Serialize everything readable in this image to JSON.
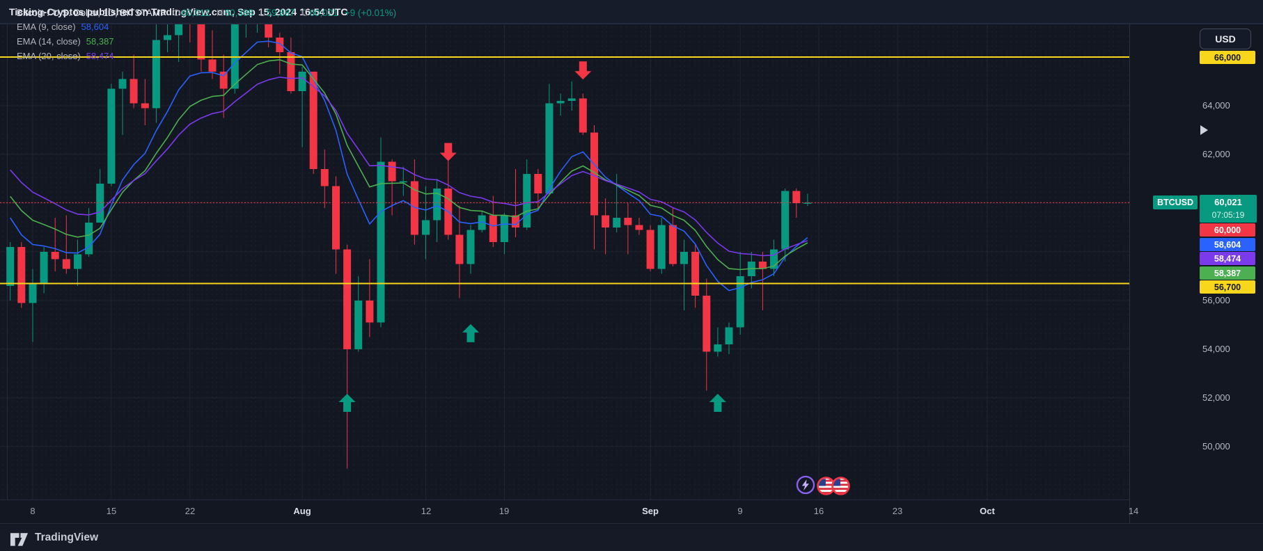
{
  "publisher_bar": {
    "text": "Ticking-Cryptos published on TradingView.com, Sep 15, 2024 16:54 UTC"
  },
  "legend": {
    "symbol_title": "Bitcoin / U.S. Dollar, 1D, BITSTAMP",
    "ohlc": [
      {
        "label": "O",
        "value": "60,012"
      },
      {
        "label": "H",
        "value": "60,388"
      },
      {
        "label": "L",
        "value": "59,887"
      },
      {
        "label": "C",
        "value": "60,021"
      }
    ],
    "change": "+9 (+0.01%)",
    "indicators": [
      {
        "label": "EMA (9, close)",
        "value": "58,604",
        "color": "#2962ff"
      },
      {
        "label": "EMA (14, close)",
        "value": "58,387",
        "color": "#4caf50"
      },
      {
        "label": "EMA (20, close)",
        "value": "58,474",
        "color": "#7c3aed"
      }
    ]
  },
  "price_axis": {
    "currency_label": "USD",
    "plain_ticks": [
      {
        "label": "64,000",
        "price": 64000
      },
      {
        "label": "62,000",
        "price": 62000
      },
      {
        "label": "56,000",
        "price": 56000
      },
      {
        "label": "54,000",
        "price": 54000
      },
      {
        "label": "52,000",
        "price": 52000
      },
      {
        "label": "50,000",
        "price": 50000
      }
    ],
    "line_badges": [
      {
        "label": "66,000",
        "price": 66000,
        "bg": "#f7d61b",
        "fg": "#131722"
      }
    ],
    "last_price": {
      "tag": "BTCUSD",
      "value": "60,021",
      "value_num": 60021,
      "countdown": "07:05:19",
      "bg": "#089981"
    },
    "stacked_badges": [
      {
        "label": "60,000",
        "price": 60000,
        "bg": "#f23645",
        "fg": "#ffffff"
      },
      {
        "label": "58,604",
        "price": 58604,
        "bg": "#2962ff",
        "fg": "#ffffff"
      },
      {
        "label": "58,474",
        "price": 58474,
        "bg": "#7c3aed",
        "fg": "#ffffff"
      },
      {
        "label": "58,387",
        "price": 58387,
        "bg": "#4caf50",
        "fg": "#ffffff"
      },
      {
        "label": "56,700",
        "price": 56700,
        "bg": "#f7d61b",
        "fg": "#131722"
      }
    ]
  },
  "footer": {
    "brand": "TradingView"
  },
  "chart_data": {
    "type": "candlestick",
    "title": "Bitcoin / U.S. Dollar",
    "interval": "1D",
    "exchange": "BITSTAMP",
    "colors": {
      "up": "#089981",
      "down": "#f23645",
      "grid": "rgba(250,250,255,0.055)"
    },
    "price_range_visible": [
      47800,
      67343
    ],
    "grid_prices": [
      66000,
      64000,
      62000,
      60000,
      58000,
      56000,
      54000,
      52000,
      50000
    ],
    "time_gridlines": [
      {
        "label": "8",
        "index": 2
      },
      {
        "label": "15",
        "index": 9
      },
      {
        "label": "22",
        "index": 16
      },
      {
        "label": "Aug",
        "index": 26,
        "major": true
      },
      {
        "label": "12",
        "index": 37
      },
      {
        "label": "19",
        "index": 44
      },
      {
        "label": "Sep",
        "index": 57,
        "major": true
      },
      {
        "label": "9",
        "index": 65
      },
      {
        "label": "16",
        "index": 72
      },
      {
        "label": "23",
        "index": 79
      },
      {
        "label": "Oct",
        "index": 87,
        "major": true
      },
      {
        "label": "14",
        "index": 100
      }
    ],
    "columns": [
      "date",
      "open",
      "high",
      "low",
      "close"
    ],
    "candles": [
      [
        "Jul 6",
        56600,
        58400,
        56000,
        58200
      ],
      [
        "Jul 7",
        58200,
        58400,
        55700,
        55900
      ],
      [
        "Jul 8",
        55900,
        57300,
        54300,
        56700
      ],
      [
        "Jul 9",
        56700,
        58200,
        56300,
        58000
      ],
      [
        "Jul 10",
        58000,
        59400,
        57200,
        57700
      ],
      [
        "Jul 11",
        57700,
        59500,
        57100,
        57300
      ],
      [
        "Jul 12",
        57300,
        58500,
        56600,
        57900
      ],
      [
        "Jul 13",
        57900,
        59800,
        57800,
        59200
      ],
      [
        "Jul 14",
        59200,
        61400,
        59200,
        60800
      ],
      [
        "Jul 15",
        60800,
        64900,
        60700,
        64700
      ],
      [
        "Jul 16",
        64700,
        65400,
        62800,
        65100
      ],
      [
        "Jul 17",
        65100,
        66100,
        63900,
        64100
      ],
      [
        "Jul 18",
        64100,
        65100,
        63200,
        63900
      ],
      [
        "Jul 19",
        63900,
        67400,
        63300,
        66700
      ],
      [
        "Jul 20",
        66700,
        67600,
        66200,
        66900
      ],
      [
        "Jul 21",
        66900,
        68400,
        65800,
        68200
      ],
      [
        "Jul 22",
        68200,
        68500,
        66600,
        67500
      ],
      [
        "Jul 23",
        67500,
        67800,
        65400,
        65900
      ],
      [
        "Jul 24",
        65900,
        67100,
        65100,
        65400
      ],
      [
        "Jul 25",
        65400,
        66100,
        63500,
        64700
      ],
      [
        "Jul 26",
        64700,
        68200,
        64500,
        67900
      ],
      [
        "Jul 27",
        67900,
        69400,
        66800,
        67900
      ],
      [
        "Jul 28",
        67900,
        68800,
        67000,
        68300
      ],
      [
        "Jul 29",
        68300,
        69900,
        66400,
        66800
      ],
      [
        "Jul 30",
        66800,
        67000,
        65300,
        66200
      ],
      [
        "Jul 31",
        66200,
        66800,
        64500,
        64600
      ],
      [
        "Aug 1",
        64600,
        65600,
        62300,
        65400
      ],
      [
        "Aug 2",
        65400,
        65400,
        61200,
        61400
      ],
      [
        "Aug 3",
        61400,
        62200,
        59800,
        60700
      ],
      [
        "Aug 4",
        60700,
        61100,
        57100,
        58100
      ],
      [
        "Aug 5",
        58100,
        58300,
        49100,
        54000
      ],
      [
        "Aug 6",
        54000,
        57000,
        53900,
        56000
      ],
      [
        "Aug 7",
        56000,
        57700,
        54500,
        55100
      ],
      [
        "Aug 8",
        55100,
        62700,
        54900,
        61700
      ],
      [
        "Aug 9",
        61700,
        61800,
        59500,
        60900
      ],
      [
        "Aug 10",
        60900,
        61500,
        60300,
        60900
      ],
      [
        "Aug 11",
        60900,
        61800,
        58300,
        58700
      ],
      [
        "Aug 12",
        58700,
        60700,
        57700,
        59300
      ],
      [
        "Aug 13",
        59300,
        61000,
        58400,
        60600
      ],
      [
        "Aug 14",
        60600,
        61800,
        58500,
        58700
      ],
      [
        "Aug 15",
        58700,
        59900,
        56100,
        57500
      ],
      [
        "Aug 16",
        57500,
        59100,
        57100,
        58900
      ],
      [
        "Aug 17",
        58900,
        59700,
        58800,
        59500
      ],
      [
        "Aug 18",
        59500,
        60300,
        58200,
        58400
      ],
      [
        "Aug 19",
        58400,
        59600,
        57900,
        59500
      ],
      [
        "Aug 20",
        59500,
        61400,
        58600,
        59000
      ],
      [
        "Aug 21",
        59000,
        61800,
        58900,
        61200
      ],
      [
        "Aug 22",
        61200,
        61400,
        59800,
        60400
      ],
      [
        "Aug 23",
        60400,
        64900,
        60300,
        64100
      ],
      [
        "Aug 24",
        64100,
        64500,
        63600,
        64200
      ],
      [
        "Aug 25",
        64200,
        65000,
        63800,
        64300
      ],
      [
        "Aug 26",
        64300,
        64500,
        62800,
        62900
      ],
      [
        "Aug 27",
        62900,
        63200,
        58100,
        59500
      ],
      [
        "Aug 28",
        59500,
        60200,
        57900,
        59000
      ],
      [
        "Aug 29",
        59000,
        61200,
        58800,
        59400
      ],
      [
        "Aug 30",
        59400,
        60000,
        57900,
        59100
      ],
      [
        "Aug 31",
        59100,
        59400,
        58700,
        58900
      ],
      [
        "Sep 1",
        58900,
        59100,
        57200,
        57300
      ],
      [
        "Sep 2",
        57300,
        59400,
        57100,
        59100
      ],
      [
        "Sep 3",
        59100,
        59800,
        57400,
        57500
      ],
      [
        "Sep 4",
        57500,
        58500,
        55600,
        58000
      ],
      [
        "Sep 5",
        58000,
        58300,
        55700,
        56200
      ],
      [
        "Sep 6",
        56200,
        56900,
        52300,
        53900
      ],
      [
        "Sep 7",
        53900,
        54900,
        53700,
        54200
      ],
      [
        "Sep 8",
        54200,
        55100,
        53800,
        54900
      ],
      [
        "Sep 9",
        54900,
        58000,
        54600,
        57000
      ],
      [
        "Sep 10",
        57000,
        58000,
        56500,
        57600
      ],
      [
        "Sep 11",
        57600,
        58000,
        55600,
        57300
      ],
      [
        "Sep 12",
        57300,
        58500,
        57000,
        58100
      ],
      [
        "Sep 13",
        58100,
        60600,
        57600,
        60500
      ],
      [
        "Sep 14",
        60500,
        60600,
        59400,
        60000
      ],
      [
        "Sep 15",
        60012,
        60388,
        59887,
        60021
      ]
    ],
    "emas": [
      {
        "period": 9,
        "color": "#2962ff",
        "seed": 59700,
        "last": 58604
      },
      {
        "period": 14,
        "color": "#4caf50",
        "seed": 60600,
        "last": 58387
      },
      {
        "period": 20,
        "color": "#7c3aed",
        "seed": 61700,
        "last": 58474
      }
    ],
    "hlines": [
      {
        "price": 66000,
        "color": "#f7d61b",
        "width": 2
      },
      {
        "price": 56700,
        "color": "#f7d61b",
        "width": 2
      }
    ],
    "last_price_line": {
      "price": 60021,
      "color": "#f23645",
      "style": "dashed"
    },
    "markers": [
      {
        "index": 30,
        "side": "buy",
        "price": 51800
      },
      {
        "index": 41,
        "side": "buy",
        "price": 54660
      },
      {
        "index": 63,
        "side": "buy",
        "price": 51800
      },
      {
        "index": 39,
        "side": "sell",
        "price": 62100
      },
      {
        "index": 51,
        "side": "sell",
        "price": 65450
      }
    ],
    "events": [
      {
        "icon": "lightning",
        "index": 70.8
      },
      {
        "icon": "us-flag",
        "index": 72.6
      },
      {
        "icon": "us-flag",
        "index": 73.9
      }
    ]
  }
}
